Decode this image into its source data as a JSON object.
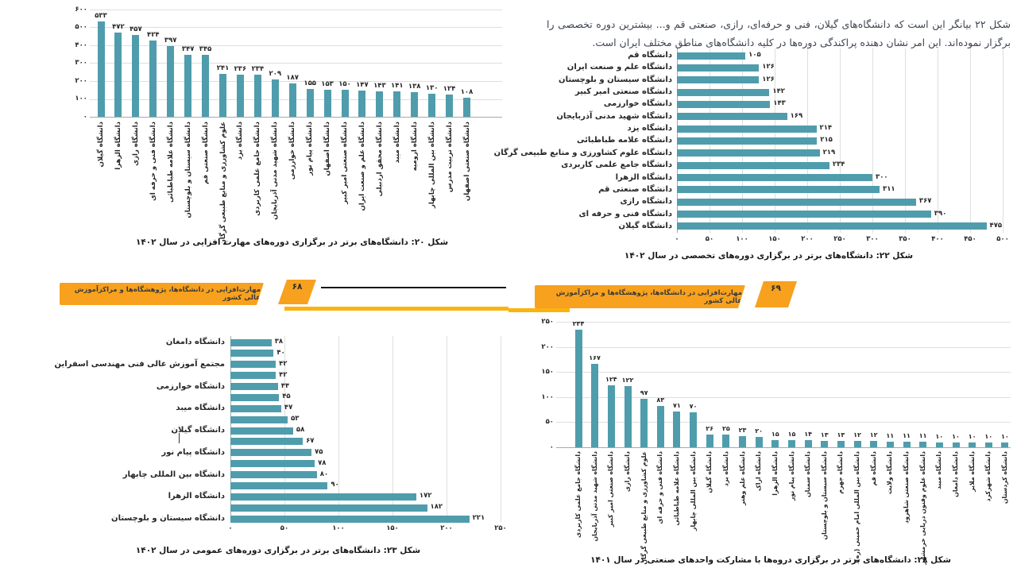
{
  "intro": {
    "text": "شکل ۲۲ بیانگر این است که دانشگاه‌های گیلان، فنی و حرفه‌ای، رازی، صنعتی قم و... بیشترین دوره تخصصی را برگزار نموده‌اند. این امر نشان دهنده پراکندگی دوره‌ها در کلیه دانشگاه‌های مناطق مختلف ایران است."
  },
  "banners": {
    "left": {
      "label": "مهارت‌افزایی در دانشگاه‌ها، پژوهشگاه‌ها و مراکزآموزش عالی کشور",
      "page_number": "۶۸"
    },
    "right": {
      "label": "مهارت‌افزایی در دانشگاه‌ها، پژوهشگاه‌ها و مراکزآموزش عالی کشور",
      "page_number": "۶۹"
    }
  },
  "colors": {
    "bar_teal": "#4f9dac",
    "banner_orange": "#F7A11E",
    "strip_yellow": "#FBB30F",
    "grid": "#dedede"
  },
  "chart_data": [
    {
      "id": "fig20",
      "type": "bar",
      "orientation": "vertical",
      "digits": "persian",
      "caption": "شکل ۲۰: دانشگاه‌های برتر در برگزاری دوره‌های مهارت افزایی در سال ۱۴۰۲",
      "value_axis": {
        "min": 0,
        "max": 600,
        "ticks": [
          0,
          100,
          200,
          300,
          400,
          500,
          600
        ]
      },
      "categories": [
        "دانشگاه گیلان",
        "دانشگاه الزهرا",
        "دانشگاه رازی",
        "دانشگاه فنی و حرفه ای",
        "دانشگاه علامه طباطبائی",
        "دانشگاه سیستان و بلوچستان",
        "دانشگاه صنعتی قم",
        "علوم کشاورزی و منابع طبیعی گرگان",
        "دانشگاه یزد",
        "دانشگاه جامع علمی کاربردی",
        "دانشگاه شهید مدنی آذربایجان",
        "دانشگاه خوارزمی",
        "دانشگاه پیام نور",
        "دانشگاه اصفهان",
        "دانشگاه صنعتی امیر کبیر",
        "دانشگاه علم و صنعت ایران",
        "دانشگاه محقق اردبیلی",
        "دانشگاه میبد",
        "دانشگاه ارومیه",
        "دانشگاه بین المللی چابهار",
        "دانشگاه تربیت مدرس",
        "دانشگاه صنعتی اصفهان"
      ],
      "values": [
        533,
        472,
        457,
        424,
        397,
        347,
        345,
        241,
        236,
        234,
        209,
        187,
        155,
        153,
        150,
        147,
        143,
        141,
        138,
        130,
        124,
        108
      ]
    },
    {
      "id": "fig22",
      "type": "bar",
      "orientation": "horizontal",
      "digits": "persian",
      "caption": "شکل ۲۲: دانشگاه‌های برتر در برگزاری دوره‌های تخصصی در سال ۱۴۰۲",
      "value_axis": {
        "min": 0,
        "max": 500,
        "ticks": [
          0,
          50,
          100,
          150,
          200,
          250,
          300,
          350,
          400,
          450,
          500
        ]
      },
      "categories": [
        "دانشگاه قم",
        "دانشگاه علم و صنعت ایران",
        "دانشگاه سیستان و بلوچستان",
        "دانشگاه صنعتی امیر کبیر",
        "دانشگاه خوارزمی",
        "دانشگاه شهید مدنی آذربایجان",
        "دانشگاه یزد",
        "دانشگاه علامه طباطبائی",
        "دانشگاه علوم کشاورزی و منابع طبیعی گرگان",
        "دانشگاه جامع علمی کاربردی",
        "دانشگاه الزهرا",
        "دانشگاه صنعتی قم",
        "دانشگاه رازی",
        "دانشگاه فنی و حرفه ای",
        "دانشگاه گیلان"
      ],
      "values": [
        105,
        126,
        126,
        142,
        143,
        169,
        214,
        215,
        219,
        234,
        300,
        311,
        367,
        390,
        475
      ]
    },
    {
      "id": "fig23",
      "type": "bar",
      "orientation": "horizontal",
      "digits": "persian",
      "caption": "شکل ۲۳: دانشگاه‌های برتر در برگزاری دوره‌های عمومی در سال ۱۴۰۲",
      "value_axis": {
        "min": 0,
        "max": 250,
        "ticks": [
          0,
          50,
          100,
          150,
          200,
          250
        ]
      },
      "categories": [
        "دانشگاه دامغان",
        "",
        "مجتمع آموزش عالی فنی مهندسی اسفراین",
        "",
        "دانشگاه خوارزمی",
        "",
        "دانشگاه میبد",
        "",
        "دانشگاه گیلان",
        "",
        "دانشگاه پیام نور",
        "",
        "دانشگاه بین المللی چابهار",
        "",
        "دانشگاه الزهرا",
        "",
        "دانشگاه سیستان و بلوچستان"
      ],
      "values": [
        38,
        40,
        42,
        42,
        44,
        45,
        47,
        53,
        58,
        67,
        75,
        78,
        80,
        90,
        172,
        182,
        221
      ]
    },
    {
      "id": "fig28",
      "type": "bar",
      "orientation": "vertical",
      "digits": "persian",
      "caption": "شکل ۲۸: دانشگاه‌های برتر در برگزاری دروه‌ها با مشارکت واحدهای صنعتی در سال ۱۴۰۱",
      "value_axis": {
        "min": 0,
        "max": 250,
        "ticks": [
          0,
          50,
          100,
          150,
          200,
          250
        ]
      },
      "categories": [
        "دانشگاه جامع علمی کاربردی",
        "دانشگاه شهید مدنی آذربایجان",
        "دانشگاه صنعتی امیر کبیر",
        "دانشگاه رازی",
        "علوم کشاورزی و منابع طبیعی گرگان",
        "دانشگاه فنی و حرفه ای",
        "دانشگاه علامه طباطبائی",
        "دانشگاه بین المللی چابهار",
        "دانشگاه گیلان",
        "دانشگاه یزد",
        "دانشگاه علم وهنر",
        "دانشگاه اراک",
        "دانشگاه الزهرا",
        "دانشگاه پیام نور",
        "دانشگاه سمنان",
        "دانشگاه سیستان و بلوچستان",
        "دانشگاه جهرم",
        "دانشگاه بین المللی امام خمینی (ره)",
        "دانشگاه قم",
        "دانشگاه ولایت",
        "دانشگاه صنعتی شاهرود",
        "دانشگاه علوم وفنون دریایی خرمشهر",
        "دانشگاه میبد",
        "دانشگاه دامغان",
        "دانشگاه ملایر",
        "دانشگاه شهرکرد",
        "دانشگاه کردستان"
      ],
      "values": [
        234,
        167,
        124,
        122,
        97,
        83,
        71,
        70,
        26,
        25,
        23,
        20,
        15,
        15,
        14,
        13,
        13,
        12,
        12,
        11,
        11,
        11,
        10,
        10,
        10,
        10,
        10
      ]
    }
  ]
}
